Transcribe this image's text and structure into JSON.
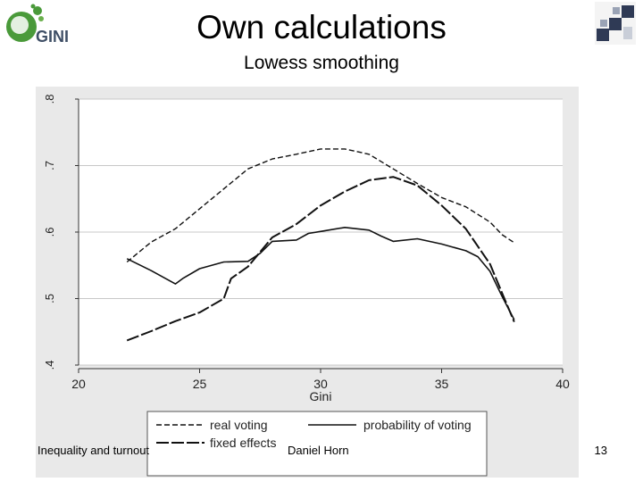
{
  "slide": {
    "title": "Own calculations",
    "subtitle": "Lowess smoothing",
    "logo_text": "GINI",
    "footer_left": "Inequality and turnout",
    "footer_center": "Daniel Horn",
    "page_number": "13"
  },
  "colors": {
    "logo_green": "#4a9a3a",
    "logo_dark": "#3f4f66",
    "chart_panel": "#e9e9e9",
    "grid": "#c8c8c8",
    "line": "#111111"
  },
  "chart_data": {
    "type": "line",
    "xlabel": "Gini",
    "ylabel": "",
    "xlim": [
      20,
      40
    ],
    "ylim": [
      0.4,
      0.8
    ],
    "x_ticks": [
      "20",
      "25",
      "30",
      "35",
      "40"
    ],
    "y_ticks": [
      ".4",
      ".5",
      ".6",
      ".7",
      ".8"
    ],
    "grid": true,
    "legend_position": "bottom",
    "series": [
      {
        "name": "real voting",
        "style": "dashed",
        "points": [
          [
            22.0,
            0.555
          ],
          [
            23.0,
            0.585
          ],
          [
            24.0,
            0.605
          ],
          [
            25.0,
            0.635
          ],
          [
            26.0,
            0.665
          ],
          [
            26.5,
            0.68
          ],
          [
            27.0,
            0.695
          ],
          [
            28.0,
            0.71
          ],
          [
            29.0,
            0.717
          ],
          [
            30.0,
            0.725
          ],
          [
            31.0,
            0.725
          ],
          [
            32.0,
            0.717
          ],
          [
            33.0,
            0.695
          ],
          [
            34.0,
            0.673
          ],
          [
            35.0,
            0.652
          ],
          [
            36.0,
            0.638
          ],
          [
            37.0,
            0.615
          ],
          [
            37.5,
            0.596
          ],
          [
            38.0,
            0.584
          ]
        ]
      },
      {
        "name": "probability of voting",
        "style": "solid",
        "points": [
          [
            22.0,
            0.56
          ],
          [
            23.0,
            0.542
          ],
          [
            24.0,
            0.522
          ],
          [
            24.3,
            0.53
          ],
          [
            25.0,
            0.545
          ],
          [
            26.0,
            0.555
          ],
          [
            27.0,
            0.556
          ],
          [
            27.5,
            0.568
          ],
          [
            28.0,
            0.586
          ],
          [
            29.0,
            0.588
          ],
          [
            29.5,
            0.598
          ],
          [
            30.0,
            0.601
          ],
          [
            31.0,
            0.607
          ],
          [
            32.0,
            0.603
          ],
          [
            32.5,
            0.594
          ],
          [
            33.0,
            0.586
          ],
          [
            34.0,
            0.59
          ],
          [
            35.0,
            0.582
          ],
          [
            36.0,
            0.572
          ],
          [
            36.5,
            0.563
          ],
          [
            37.0,
            0.541
          ],
          [
            37.5,
            0.503
          ],
          [
            38.0,
            0.468
          ]
        ]
      },
      {
        "name": "fixed effects",
        "style": "long-dash",
        "points": [
          [
            22.0,
            0.437
          ],
          [
            23.0,
            0.451
          ],
          [
            24.0,
            0.466
          ],
          [
            25.0,
            0.479
          ],
          [
            26.0,
            0.5
          ],
          [
            26.3,
            0.53
          ],
          [
            27.0,
            0.548
          ],
          [
            28.0,
            0.592
          ],
          [
            29.0,
            0.612
          ],
          [
            30.0,
            0.64
          ],
          [
            31.0,
            0.661
          ],
          [
            32.0,
            0.678
          ],
          [
            33.0,
            0.683
          ],
          [
            34.0,
            0.67
          ],
          [
            35.0,
            0.64
          ],
          [
            36.0,
            0.605
          ],
          [
            37.0,
            0.552
          ],
          [
            37.5,
            0.508
          ],
          [
            38.0,
            0.465
          ]
        ]
      }
    ]
  }
}
